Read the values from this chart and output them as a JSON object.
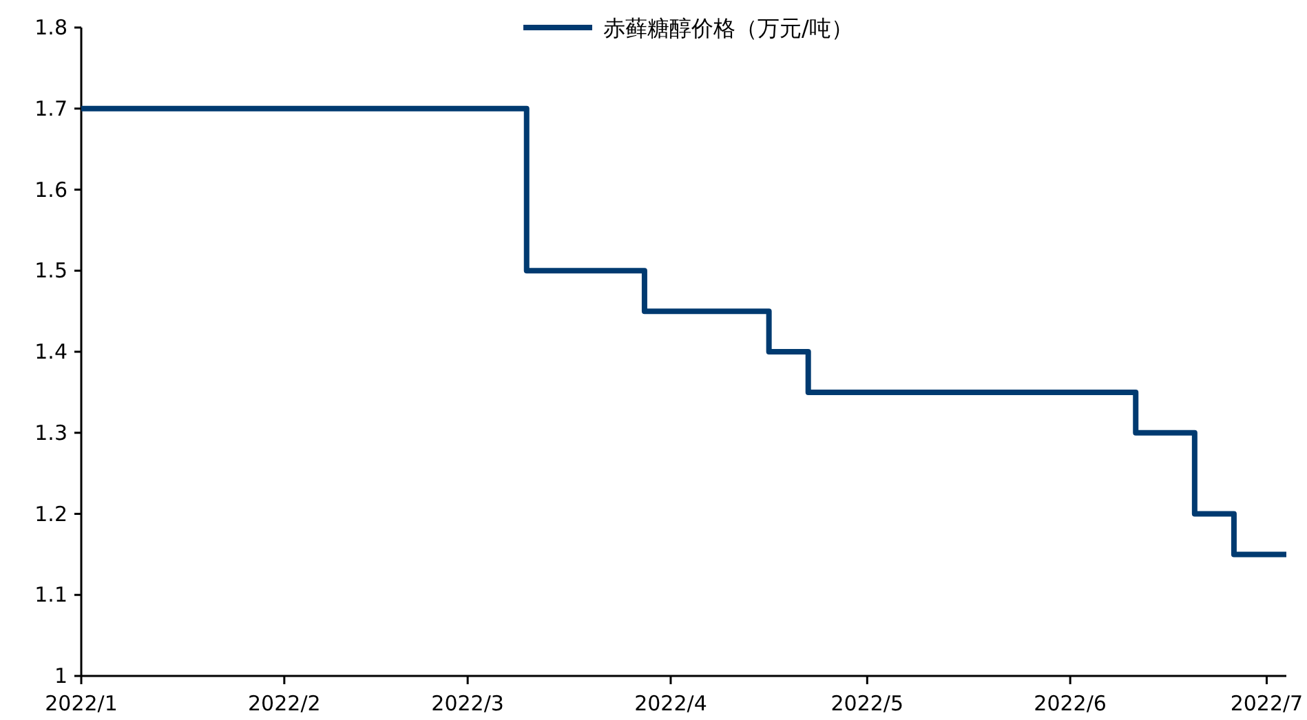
{
  "chart_data": {
    "type": "step",
    "x": [
      "2022-01-01",
      "2022-03-10",
      "2022-03-28",
      "2022-04-16",
      "2022-04-22",
      "2022-06-11",
      "2022-06-20",
      "2022-06-26",
      "2022-07-04"
    ],
    "series": [
      {
        "name": "赤藓糖醇价格（万元/吨）",
        "color": "#003a70",
        "values": [
          1.7,
          1.5,
          1.45,
          1.4,
          1.35,
          1.3,
          1.2,
          1.15,
          1.15
        ]
      }
    ],
    "xlim": [
      "2022-01-01",
      "2022-07-04"
    ],
    "xticks": [
      {
        "value": "2022-01-01",
        "label": "2022/1"
      },
      {
        "value": "2022-02-01",
        "label": "2022/2"
      },
      {
        "value": "2022-03-01",
        "label": "2022/3"
      },
      {
        "value": "2022-04-01",
        "label": "2022/4"
      },
      {
        "value": "2022-05-01",
        "label": "2022/5"
      },
      {
        "value": "2022-06-01",
        "label": "2022/6"
      },
      {
        "value": "2022-07-01",
        "label": "2022/7"
      }
    ],
    "ylim": [
      1,
      1.8
    ],
    "yticks": [
      1,
      1.1,
      1.2,
      1.3,
      1.4,
      1.5,
      1.6,
      1.7,
      1.8
    ],
    "grid": false,
    "legend": "top",
    "marker": "none",
    "line_style": "solid"
  }
}
